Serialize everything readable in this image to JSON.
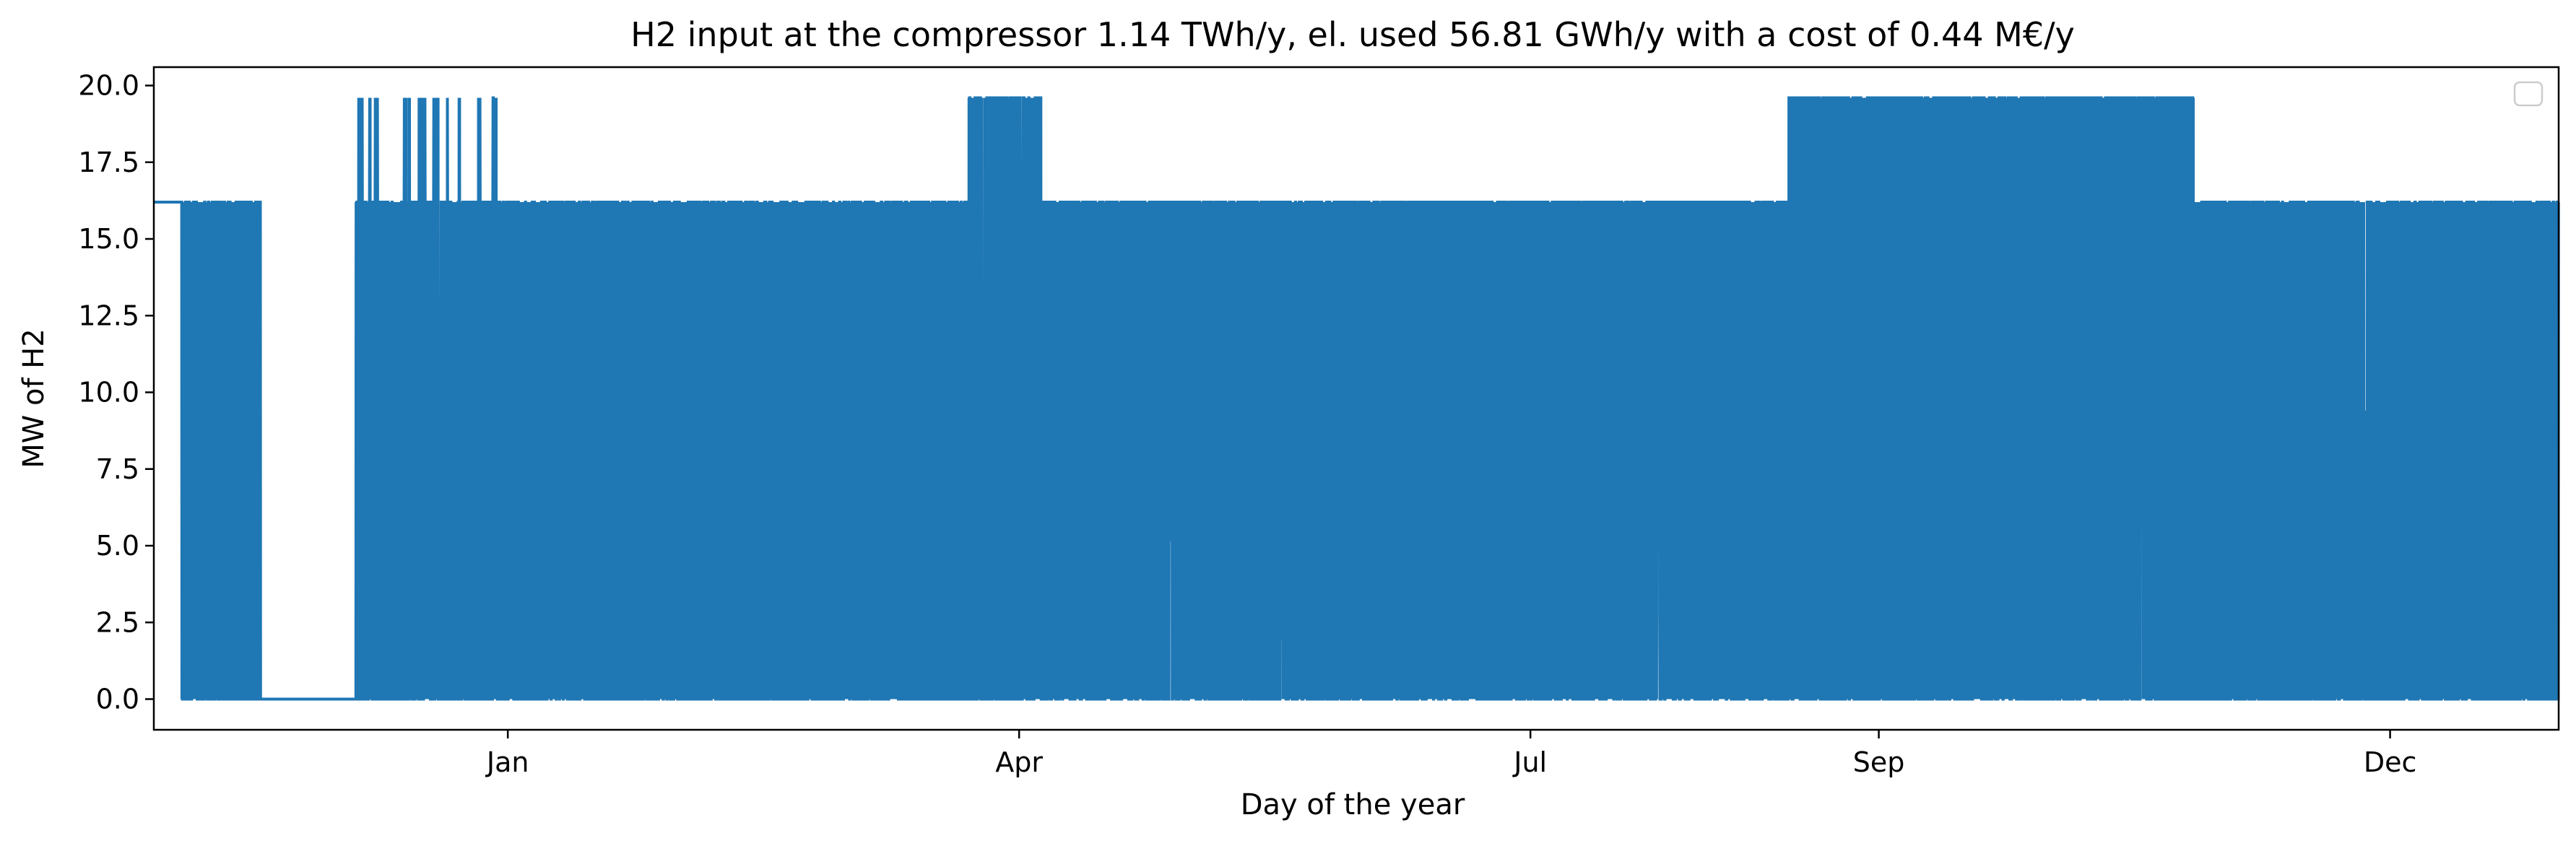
{
  "chart_data": {
    "type": "line",
    "title": "H2 input at the compressor 1.14 TWh/y, el. used 56.81 GWh/y with a cost of 0.44 M€/y",
    "xlabel": "Day of the year",
    "ylabel": "MW of H2",
    "xlim": [
      "2023-10-30",
      "2024-12-31"
    ],
    "ylim": [
      -1.0,
      20.6
    ],
    "x_ticks": [
      {
        "label": "Jan",
        "date": "2024-01-01"
      },
      {
        "label": "Apr",
        "date": "2024-04-01"
      },
      {
        "label": "Jul",
        "date": "2024-07-01"
      },
      {
        "label": "Sep",
        "date": "2024-09-01"
      },
      {
        "label": "Dec",
        "date": "2024-12-01"
      }
    ],
    "y_ticks": [
      0.0,
      2.5,
      5.0,
      7.5,
      10.0,
      12.5,
      15.0,
      17.5,
      20.0
    ],
    "y_tick_labels": [
      "0.0",
      "2.5",
      "5.0",
      "7.5",
      "10.0",
      "12.5",
      "15.0",
      "17.5",
      "20.0"
    ],
    "legend": {
      "location": "upper right",
      "entries": []
    },
    "grid": false,
    "line_color": "#1f77b4",
    "levels": {
      "low": 0.0,
      "mid": 16.2,
      "high": 19.6
    },
    "segments": [
      {
        "start": "2023-10-30",
        "end": "2023-11-04",
        "mode": "mid"
      },
      {
        "start": "2023-11-04",
        "end": "2023-11-18",
        "mode": "osc",
        "high": 16.2
      },
      {
        "start": "2023-11-18",
        "end": "2023-12-05",
        "mode": "low"
      },
      {
        "start": "2023-12-05",
        "end": "2023-12-30",
        "mode": "osc",
        "high": 16.2,
        "peaks": 19.6
      },
      {
        "start": "2023-12-30",
        "end": "2024-03-23",
        "mode": "osc",
        "high": 16.2
      },
      {
        "start": "2024-03-23",
        "end": "2024-04-05",
        "mode": "osc",
        "high": 19.6
      },
      {
        "start": "2024-04-05",
        "end": "2024-08-16",
        "mode": "dense",
        "high": 16.2
      },
      {
        "start": "2024-08-16",
        "end": "2024-10-27",
        "mode": "dense",
        "high": 19.6
      },
      {
        "start": "2024-10-27",
        "end": "2024-12-31",
        "mode": "osc",
        "high": 16.2
      }
    ]
  }
}
